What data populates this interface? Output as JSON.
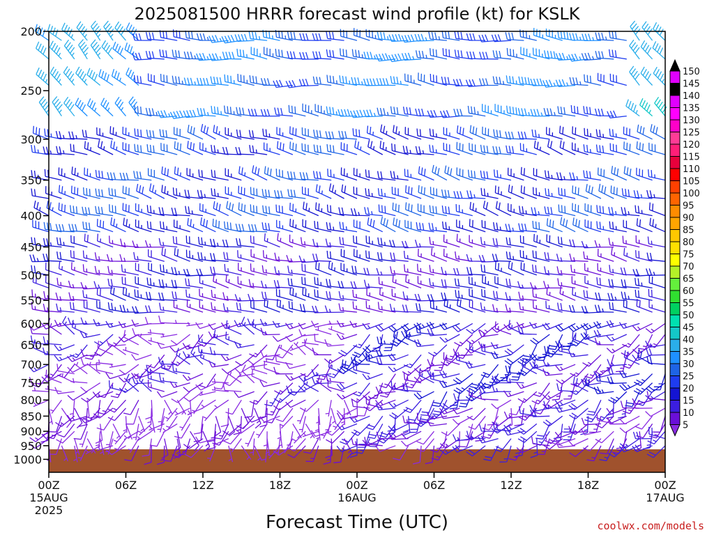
{
  "chart_data": {
    "type": "wind-barb-profile",
    "title": "2025081500 HRRR forecast wind profile (kt) for KSLK",
    "xlabel": "Forecast Time (UTC)",
    "x_ticks": [
      {
        "hour": 0,
        "label": "00Z",
        "sub1": "15AUG",
        "sub2": "2025"
      },
      {
        "hour": 6,
        "label": "06Z",
        "sub1": "",
        "sub2": ""
      },
      {
        "hour": 12,
        "label": "12Z",
        "sub1": "",
        "sub2": ""
      },
      {
        "hour": 18,
        "label": "18Z",
        "sub1": "",
        "sub2": ""
      },
      {
        "hour": 24,
        "label": "00Z",
        "sub1": "16AUG",
        "sub2": ""
      },
      {
        "hour": 30,
        "label": "06Z",
        "sub1": "",
        "sub2": ""
      },
      {
        "hour": 36,
        "label": "12Z",
        "sub1": "",
        "sub2": ""
      },
      {
        "hour": 42,
        "label": "18Z",
        "sub1": "",
        "sub2": ""
      },
      {
        "hour": 48,
        "label": "00Z",
        "sub1": "17AUG",
        "sub2": ""
      }
    ],
    "xlim": [
      0,
      48
    ],
    "y_ticks": [
      200,
      250,
      300,
      350,
      400,
      450,
      500,
      550,
      600,
      650,
      700,
      750,
      800,
      850,
      900,
      950,
      1000
    ],
    "ylim_hpa": [
      200,
      1050
    ],
    "y_scale": "log",
    "ground_pressure_hpa": 963,
    "ground_color": "#a0522d",
    "colorbar_levels": [
      5,
      10,
      15,
      20,
      25,
      30,
      35,
      40,
      45,
      50,
      55,
      60,
      65,
      70,
      75,
      80,
      85,
      90,
      95,
      100,
      105,
      110,
      115,
      120,
      125,
      130,
      135,
      140,
      145,
      150
    ],
    "colorbar_colors": [
      "#8a2be2",
      "#6a0fd8",
      "#3b1ee0",
      "#1414d2",
      "#1e3cf0",
      "#1e64e6",
      "#1e90ff",
      "#2aaeea",
      "#14c8c8",
      "#00e0b0",
      "#00d060",
      "#30e030",
      "#64f03c",
      "#b4f028",
      "#ffff00",
      "#ffe000",
      "#ffc800",
      "#ffa500",
      "#ff8c00",
      "#ff6400",
      "#ff4000",
      "#ff0000",
      "#e8003c",
      "#ff1e78",
      "#ff3c96",
      "#ff00c8",
      "#ff00ff",
      "#e000ff",
      "#000000"
    ],
    "levels_hpa": [
      207,
      222,
      245,
      275,
      300,
      318,
      350,
      375,
      400,
      425,
      450,
      475,
      500,
      525,
      550,
      575,
      600,
      625,
      650,
      675,
      700,
      725,
      750,
      775,
      800,
      825,
      850,
      875,
      900,
      925,
      950
    ],
    "time_step_hours": 1,
    "wind_regimes": [
      {
        "p_min": 200,
        "p_max": 300,
        "t_min": 0,
        "t_max": 8,
        "dir_deg": 315,
        "speed_kt": 40
      },
      {
        "p_min": 200,
        "p_max": 300,
        "t_min": 8,
        "t_max": 46,
        "dir_deg": 275,
        "speed_kt": 33
      },
      {
        "p_min": 200,
        "p_max": 300,
        "t_min": 46,
        "t_max": 49,
        "dir_deg": 320,
        "speed_kt": 45
      },
      {
        "p_min": 300,
        "p_max": 450,
        "t_min": 0,
        "t_max": 49,
        "dir_deg": 285,
        "speed_kt": 27
      },
      {
        "p_min": 450,
        "p_max": 600,
        "t_min": 0,
        "t_max": 49,
        "dir_deg": 280,
        "speed_kt": 18
      },
      {
        "p_min": 600,
        "p_max": 800,
        "t_min": 0,
        "t_max": 24,
        "dir_deg": 260,
        "speed_kt": 12
      },
      {
        "p_min": 600,
        "p_max": 800,
        "t_min": 24,
        "t_max": 49,
        "dir_deg": 245,
        "speed_kt": 18
      },
      {
        "p_min": 800,
        "p_max": 1000,
        "t_min": 0,
        "t_max": 24,
        "dir_deg": 200,
        "speed_kt": 8
      },
      {
        "p_min": 800,
        "p_max": 1000,
        "t_min": 24,
        "t_max": 49,
        "dir_deg": 230,
        "speed_kt": 14
      }
    ]
  },
  "credit": "coolwx.com/models"
}
